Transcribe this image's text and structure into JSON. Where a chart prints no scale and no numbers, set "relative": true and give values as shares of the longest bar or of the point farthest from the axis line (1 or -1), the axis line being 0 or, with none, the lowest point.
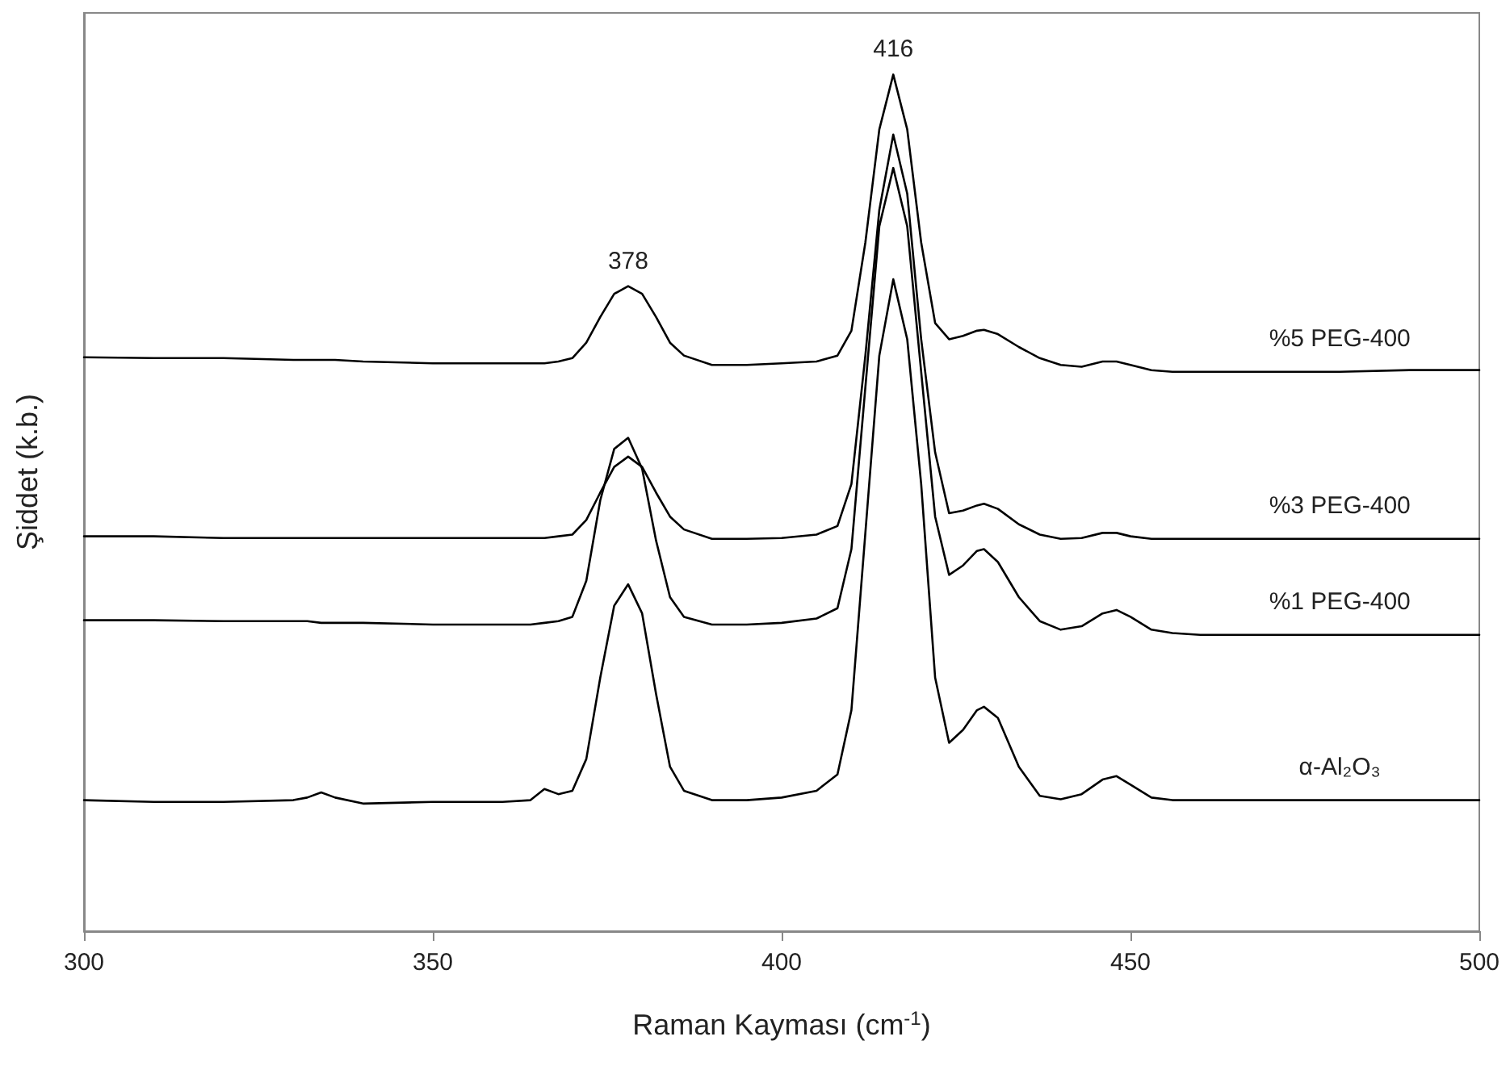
{
  "chart_data": {
    "type": "line",
    "relative": true,
    "xlabel": "Raman Kayması (cm$^{-1}$)",
    "ylabel": "Şiddet (k.b.)",
    "xlim": [
      300,
      500
    ],
    "xticks": [
      300,
      350,
      400,
      450,
      500
    ],
    "marker": "none",
    "line_style": "solid",
    "annotations": [
      {
        "text": "378",
        "x": 378,
        "y": 0.753
      },
      {
        "text": "416",
        "x": 416,
        "y": 1
      }
    ],
    "x": [
      300,
      310,
      320,
      330,
      332,
      334,
      336,
      340,
      350,
      360,
      364,
      366,
      368,
      370,
      372,
      374,
      376,
      378,
      380,
      382,
      384,
      386,
      390,
      395,
      400,
      405,
      408,
      410,
      412,
      414,
      416,
      418,
      420,
      422,
      424,
      426,
      428,
      429,
      431,
      434,
      437,
      440,
      443,
      446,
      448,
      450,
      453,
      456,
      460,
      470,
      480,
      490,
      500
    ],
    "series": [
      {
        "name": "%5 PEG-400",
        "color": "#000000",
        "values": [
          0.67,
          0.669,
          0.669,
          0.667,
          0.667,
          0.667,
          0.667,
          0.665,
          0.663,
          0.663,
          0.663,
          0.663,
          0.665,
          0.669,
          0.687,
          0.717,
          0.744,
          0.753,
          0.744,
          0.717,
          0.687,
          0.672,
          0.661,
          0.661,
          0.663,
          0.665,
          0.672,
          0.701,
          0.804,
          0.936,
          1,
          0.936,
          0.804,
          0.71,
          0.691,
          0.695,
          0.701,
          0.702,
          0.697,
          0.682,
          0.669,
          0.661,
          0.659,
          0.665,
          0.665,
          0.661,
          0.655,
          0.653,
          0.653,
          0.653,
          0.653,
          0.655,
          0.655
        ]
      },
      {
        "name": "%3 PEG-400",
        "color": "#000000",
        "values": [
          0.461,
          0.461,
          0.459,
          0.459,
          0.459,
          0.459,
          0.459,
          0.459,
          0.459,
          0.459,
          0.459,
          0.459,
          0.461,
          0.463,
          0.48,
          0.512,
          0.542,
          0.554,
          0.542,
          0.512,
          0.484,
          0.469,
          0.458,
          0.458,
          0.459,
          0.463,
          0.473,
          0.522,
          0.672,
          0.842,
          0.93,
          0.861,
          0.691,
          0.559,
          0.488,
          0.491,
          0.497,
          0.499,
          0.493,
          0.475,
          0.463,
          0.458,
          0.459,
          0.465,
          0.465,
          0.461,
          0.458,
          0.458,
          0.458,
          0.458,
          0.458,
          0.458,
          0.458
        ]
      },
      {
        "name": "%1 PEG-400",
        "color": "#000000",
        "values": [
          0.363,
          0.363,
          0.362,
          0.362,
          0.362,
          0.36,
          0.36,
          0.36,
          0.358,
          0.358,
          0.358,
          0.36,
          0.362,
          0.367,
          0.409,
          0.503,
          0.563,
          0.576,
          0.54,
          0.456,
          0.39,
          0.367,
          0.358,
          0.358,
          0.36,
          0.365,
          0.377,
          0.446,
          0.635,
          0.823,
          0.891,
          0.823,
          0.653,
          0.484,
          0.416,
          0.427,
          0.444,
          0.446,
          0.431,
          0.39,
          0.362,
          0.352,
          0.356,
          0.371,
          0.375,
          0.367,
          0.352,
          0.348,
          0.346,
          0.346,
          0.346,
          0.346,
          0.346
        ]
      },
      {
        "name": "α-Al₂O₃",
        "color": "#000000",
        "values": [
          0.153,
          0.151,
          0.151,
          0.153,
          0.156,
          0.162,
          0.156,
          0.149,
          0.151,
          0.151,
          0.153,
          0.166,
          0.16,
          0.164,
          0.201,
          0.296,
          0.38,
          0.405,
          0.371,
          0.277,
          0.192,
          0.164,
          0.153,
          0.153,
          0.156,
          0.164,
          0.183,
          0.258,
          0.465,
          0.672,
          0.761,
          0.691,
          0.522,
          0.296,
          0.22,
          0.235,
          0.258,
          0.262,
          0.249,
          0.192,
          0.158,
          0.154,
          0.16,
          0.177,
          0.181,
          0.171,
          0.156,
          0.153,
          0.153,
          0.153,
          0.153,
          0.153,
          0.153
        ]
      }
    ]
  }
}
